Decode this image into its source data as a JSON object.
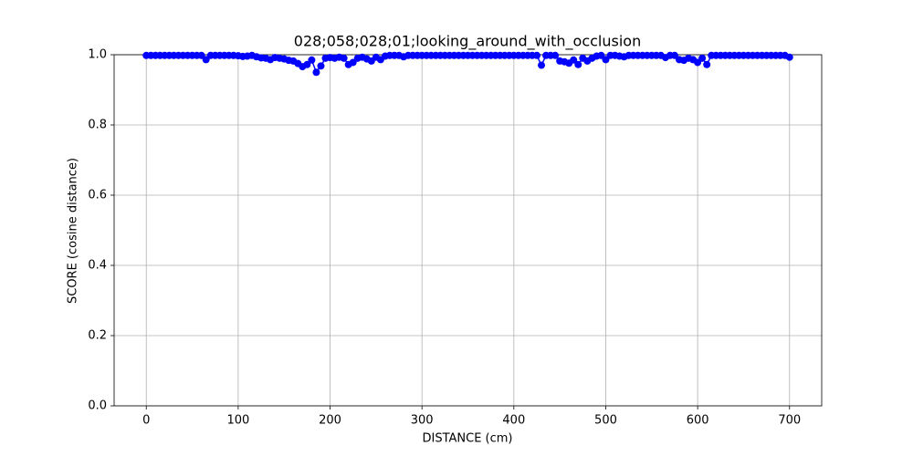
{
  "chart_data": {
    "type": "line",
    "title": "028;058;028;01;looking_around_with_occlusion",
    "x_label": "DISTANCE (cm)",
    "y_label": "SCORE (cosine distance)",
    "x": [
      0,
      5,
      10,
      15,
      20,
      25,
      30,
      35,
      40,
      45,
      50,
      55,
      60,
      65,
      70,
      75,
      80,
      85,
      90,
      95,
      100,
      105,
      110,
      115,
      120,
      125,
      130,
      135,
      140,
      145,
      150,
      155,
      160,
      165,
      170,
      175,
      180,
      185,
      190,
      195,
      200,
      205,
      210,
      215,
      220,
      225,
      230,
      235,
      240,
      245,
      250,
      255,
      260,
      265,
      270,
      275,
      280,
      285,
      290,
      295,
      300,
      305,
      310,
      315,
      320,
      325,
      330,
      335,
      340,
      345,
      350,
      355,
      360,
      365,
      370,
      375,
      380,
      385,
      390,
      395,
      400,
      405,
      410,
      415,
      420,
      425,
      430,
      435,
      440,
      445,
      450,
      455,
      460,
      465,
      470,
      475,
      480,
      485,
      490,
      495,
      500,
      505,
      510,
      515,
      520,
      525,
      530,
      535,
      540,
      545,
      550,
      555,
      560,
      565,
      570,
      575,
      580,
      585,
      590,
      595,
      600,
      605,
      610,
      615,
      620,
      625,
      630,
      635,
      640,
      645,
      650,
      655,
      660,
      665,
      670,
      675,
      680,
      685,
      690,
      695,
      700
    ],
    "series": [
      {
        "color": "#0000ff",
        "values": [
          0.998,
          0.998,
          0.998,
          0.998,
          0.998,
          0.998,
          0.998,
          0.998,
          0.998,
          0.998,
          0.998,
          0.998,
          0.998,
          0.986,
          0.998,
          0.998,
          0.998,
          0.998,
          0.998,
          0.998,
          0.997,
          0.995,
          0.996,
          0.998,
          0.994,
          0.991,
          0.99,
          0.986,
          0.992,
          0.99,
          0.988,
          0.984,
          0.982,
          0.975,
          0.966,
          0.972,
          0.985,
          0.95,
          0.968,
          0.99,
          0.992,
          0.99,
          0.993,
          0.99,
          0.972,
          0.978,
          0.99,
          0.993,
          0.988,
          0.982,
          0.993,
          0.986,
          0.996,
          0.998,
          0.998,
          0.998,
          0.994,
          0.998,
          0.998,
          0.998,
          0.998,
          0.998,
          0.998,
          0.998,
          0.998,
          0.998,
          0.998,
          0.998,
          0.998,
          0.998,
          0.998,
          0.998,
          0.998,
          0.998,
          0.998,
          0.998,
          0.998,
          0.998,
          0.998,
          0.998,
          0.998,
          0.998,
          0.998,
          0.998,
          0.998,
          0.998,
          0.97,
          0.998,
          0.998,
          0.998,
          0.982,
          0.98,
          0.976,
          0.985,
          0.972,
          0.99,
          0.982,
          0.99,
          0.996,
          0.998,
          0.986,
          0.998,
          0.998,
          0.996,
          0.994,
          0.998,
          0.998,
          0.998,
          0.998,
          0.998,
          0.998,
          0.998,
          0.998,
          0.992,
          0.998,
          0.998,
          0.986,
          0.984,
          0.99,
          0.986,
          0.978,
          0.99,
          0.972,
          0.998,
          0.998,
          0.998,
          0.998,
          0.998,
          0.998,
          0.998,
          0.998,
          0.998,
          0.998,
          0.998,
          0.998,
          0.998,
          0.998,
          0.998,
          0.998,
          0.998,
          0.993
        ]
      }
    ],
    "xlim": [
      -35,
      735
    ],
    "ylim": [
      0,
      1
    ],
    "xticks": [
      0,
      100,
      200,
      300,
      400,
      500,
      600,
      700
    ],
    "yticks": [
      {
        "value": 0,
        "label": "0.0"
      },
      {
        "value": 0.2,
        "label": "0.2"
      },
      {
        "value": 0.4,
        "label": "0.4"
      },
      {
        "value": 0.6,
        "label": "0.6"
      },
      {
        "value": 0.8,
        "label": "0.8"
      },
      {
        "value": 1,
        "label": "1.0"
      }
    ],
    "grid": true
  }
}
